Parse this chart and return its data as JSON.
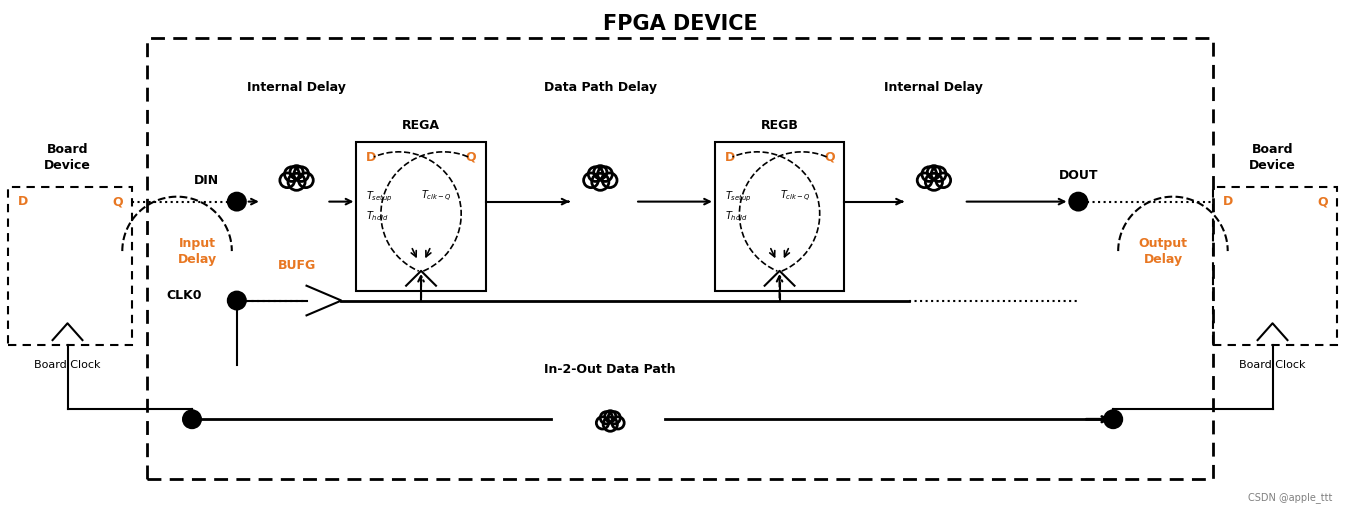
{
  "title": "FPGA DEVICE",
  "bg_color": "#ffffff",
  "text_color_orange": "#e87722",
  "text_color_black": "#000000",
  "label_board_device": "Board\nDevice",
  "label_board_clock": "Board Clock",
  "label_internal_delay_left": "Internal Delay",
  "label_internal_delay_right": "Internal Delay",
  "label_data_path_delay": "Data Path Delay",
  "label_rega": "REGA",
  "label_regb": "REGB",
  "label_input_delay": "Input\nDelay",
  "label_output_delay": "Output\nDelay",
  "label_bufg": "BUFG",
  "label_din": "DIN",
  "label_dout": "DOUT",
  "label_clk0": "CLK0",
  "label_in2out": "In-2-Out Data Path",
  "label_csdn": "CSDN @apple_ttt"
}
